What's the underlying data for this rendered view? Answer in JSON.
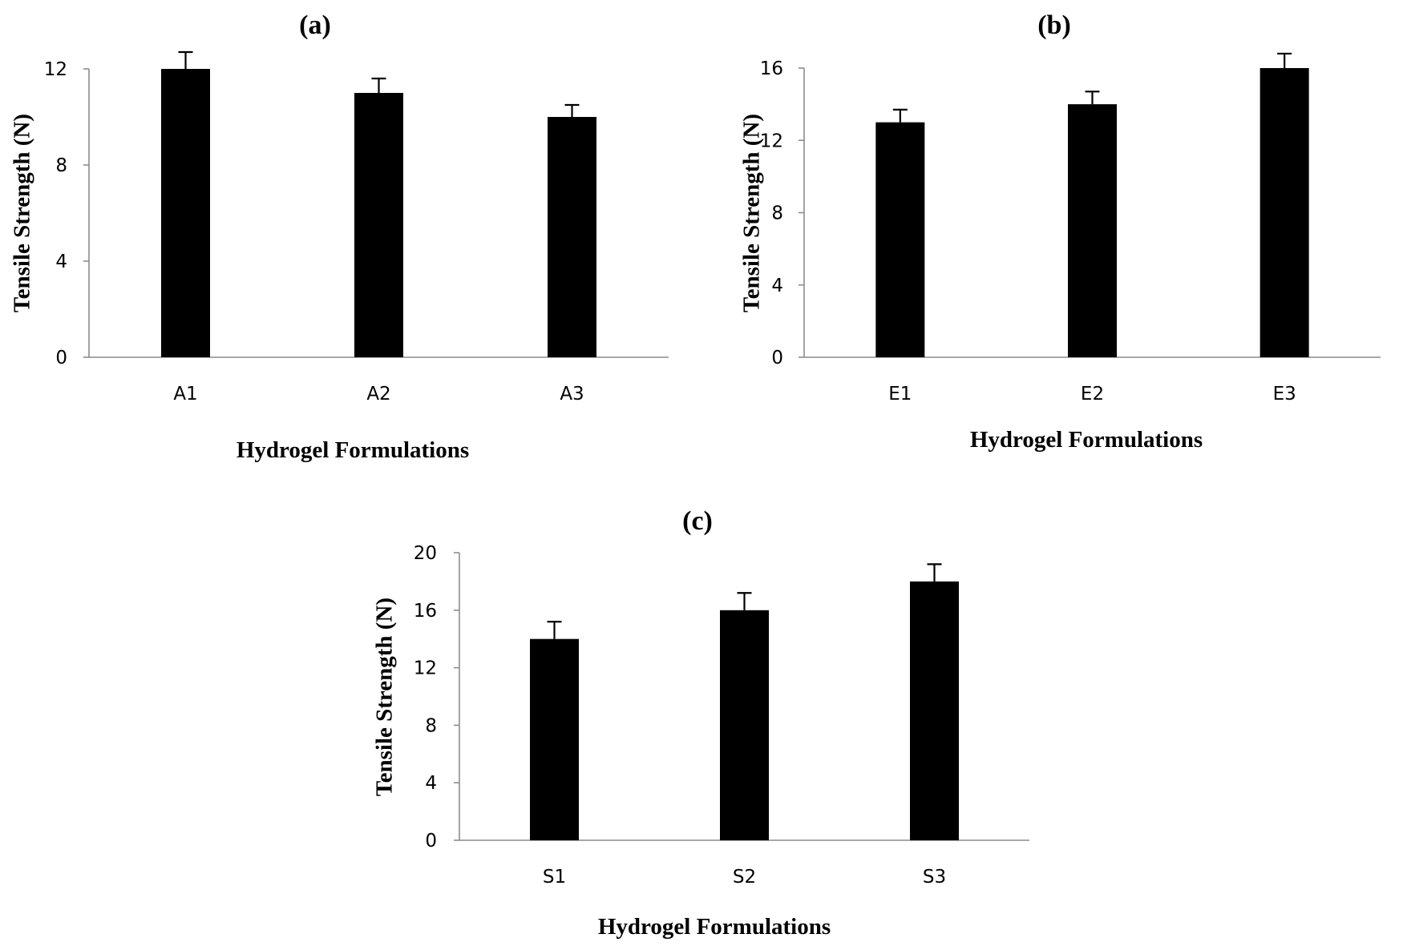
{
  "chart_data": [
    {
      "panel": "(a)",
      "type": "bar",
      "categories": [
        "A1",
        "A2",
        "A3"
      ],
      "values": [
        12,
        11,
        10
      ],
      "errors": [
        0.7,
        0.6,
        0.5
      ],
      "xlabel": "Hydrogel Formulations",
      "ylabel": "Tensile Strength (N)",
      "ylim": [
        0,
        12
      ],
      "yticks": [
        0,
        4,
        8,
        12
      ],
      "grid": false
    },
    {
      "panel": "(b)",
      "type": "bar",
      "categories": [
        "E1",
        "E2",
        "E3"
      ],
      "values": [
        13,
        14,
        16
      ],
      "errors": [
        0.7,
        0.7,
        0.8
      ],
      "xlabel": "Hydrogel Formulations",
      "ylabel": "Tensile Strength (N)",
      "ylim": [
        0,
        16
      ],
      "yticks": [
        0,
        4,
        8,
        12,
        16
      ],
      "grid": false
    },
    {
      "panel": "(c)",
      "type": "bar",
      "categories": [
        "S1",
        "S2",
        "S3"
      ],
      "values": [
        14,
        16,
        18
      ],
      "errors": [
        1.2,
        1.2,
        1.2
      ],
      "xlabel": "Hydrogel Formulations",
      "ylabel": "Tensile Strength (N)",
      "ylim": [
        0,
        20
      ],
      "yticks": [
        0,
        4,
        8,
        12,
        16,
        20
      ],
      "grid": false
    }
  ],
  "colors": {
    "bar": "#000000",
    "axis": "#8c8c8c"
  }
}
